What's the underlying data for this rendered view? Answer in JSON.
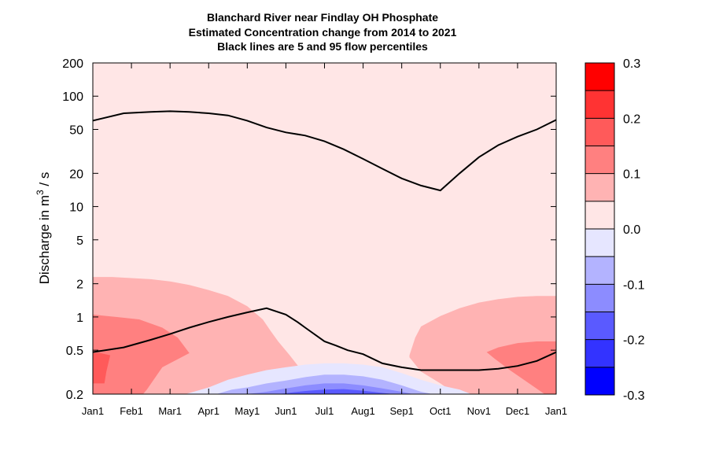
{
  "chart_data": {
    "type": "heatmap",
    "title_lines": [
      "Blanchard River near Findlay OH  Phosphate",
      "Estimated Concentration change from 2014 to 2021",
      "Black lines are 5 and 95 flow percentiles"
    ],
    "ylabel": {
      "prefix": "Discharge in m",
      "superscript": "3",
      "suffix": " / s"
    },
    "y_scale": "log",
    "ylim": [
      0.2,
      200
    ],
    "y_ticks": [
      0.2,
      0.5,
      1,
      2,
      5,
      10,
      20,
      50,
      100,
      200
    ],
    "y_tick_labels": [
      "0.2",
      "0.5",
      "1",
      "2",
      "5",
      "10",
      "20",
      "50",
      "100",
      "200"
    ],
    "xlim": [
      0,
      12
    ],
    "x_tick_labels": [
      "Jan1",
      "Feb1",
      "Mar1",
      "Apr1",
      "May1",
      "Jun1",
      "Jul1",
      "Aug1",
      "Sep1",
      "Oct1",
      "Nov1",
      "Dec1",
      "Jan1"
    ],
    "background_level_color": "#FFE6E6",
    "colorbar": {
      "ticks": [
        0.3,
        0.2,
        0.1,
        0.0,
        -0.1,
        -0.2,
        -0.3
      ],
      "tick_labels": [
        "0.3",
        "0.2",
        "0.1",
        "0.0",
        "-0.1",
        "-0.2",
        "-0.3"
      ],
      "colors_top_to_bottom": [
        "#FF0000",
        "#FF3333",
        "#FF5A5A",
        "#FF8080",
        "#FFB3B3",
        "#FFE6E6",
        "#E6E6FF",
        "#B3B3FF",
        "#8C8CFF",
        "#5A5AFF",
        "#3333FF",
        "#0000FF"
      ]
    },
    "contour_regions": [
      {
        "level": 0.1,
        "color": "#FFB3B3",
        "points": [
          [
            0,
            2.3
          ],
          [
            0.5,
            2.3
          ],
          [
            1.5,
            2.2
          ],
          [
            2,
            2.1
          ],
          [
            2.5,
            1.95
          ],
          [
            3,
            1.75
          ],
          [
            3.5,
            1.55
          ],
          [
            4,
            1.25
          ],
          [
            4.4,
            0.95
          ],
          [
            4.6,
            0.75
          ],
          [
            4.8,
            0.6
          ],
          [
            5.1,
            0.45
          ],
          [
            5.4,
            0.33
          ],
          [
            5.8,
            0.22
          ],
          [
            5.9,
            0.2
          ],
          [
            0,
            0.2
          ]
        ]
      },
      {
        "level": 0.15,
        "color": "#FF8080",
        "points": [
          [
            0,
            1.05
          ],
          [
            0.6,
            1.0
          ],
          [
            1.2,
            0.95
          ],
          [
            1.8,
            0.8
          ],
          [
            2.2,
            0.65
          ],
          [
            2.5,
            0.47
          ],
          [
            1.8,
            0.35
          ],
          [
            1.4,
            0.22
          ],
          [
            1.3,
            0.2
          ],
          [
            0,
            0.2
          ]
        ]
      },
      {
        "level": 0.2,
        "color": "#FF5A5A",
        "points": [
          [
            0,
            0.47
          ],
          [
            0.2,
            0.47
          ],
          [
            0.45,
            0.45
          ],
          [
            0.35,
            0.32
          ],
          [
            0.3,
            0.25
          ],
          [
            0,
            0.25
          ]
        ]
      },
      {
        "level": 0.1,
        "color": "#FFB3B3",
        "points": [
          [
            8.2,
            0.45
          ],
          [
            8.35,
            0.65
          ],
          [
            8.5,
            0.82
          ],
          [
            9.0,
            1.02
          ],
          [
            9.5,
            1.2
          ],
          [
            10,
            1.35
          ],
          [
            10.5,
            1.45
          ],
          [
            11,
            1.52
          ],
          [
            11.5,
            1.55
          ],
          [
            12,
            1.55
          ],
          [
            12,
            0.2
          ],
          [
            9.4,
            0.2
          ],
          [
            9.0,
            0.25
          ],
          [
            8.5,
            0.32
          ],
          [
            8.2,
            0.43
          ]
        ]
      },
      {
        "level": 0.15,
        "color": "#FF8080",
        "points": [
          [
            10.2,
            0.48
          ],
          [
            10.5,
            0.53
          ],
          [
            11,
            0.58
          ],
          [
            11.5,
            0.6
          ],
          [
            12,
            0.6
          ],
          [
            12,
            0.2
          ],
          [
            11.7,
            0.2
          ],
          [
            11.3,
            0.25
          ],
          [
            10.8,
            0.33
          ],
          [
            10.4,
            0.42
          ]
        ]
      },
      {
        "level": -0.05,
        "color": "#E6E6FF",
        "points": [
          [
            2.4,
            0.2
          ],
          [
            3,
            0.23
          ],
          [
            3.5,
            0.27
          ],
          [
            4,
            0.3
          ],
          [
            4.5,
            0.33
          ],
          [
            5,
            0.35
          ],
          [
            5.5,
            0.37
          ],
          [
            6,
            0.38
          ],
          [
            6.5,
            0.38
          ],
          [
            7,
            0.37
          ],
          [
            7.5,
            0.35
          ],
          [
            8,
            0.31
          ],
          [
            8.5,
            0.27
          ],
          [
            9,
            0.24
          ],
          [
            9.5,
            0.22
          ],
          [
            9.8,
            0.2
          ]
        ]
      },
      {
        "level": -0.1,
        "color": "#B3B3FF",
        "points": [
          [
            3.2,
            0.2
          ],
          [
            3.6,
            0.22
          ],
          [
            4,
            0.23
          ],
          [
            4.5,
            0.25
          ],
          [
            5,
            0.265
          ],
          [
            5.5,
            0.285
          ],
          [
            6,
            0.3
          ],
          [
            6.5,
            0.3
          ],
          [
            7,
            0.29
          ],
          [
            7.5,
            0.27
          ],
          [
            8,
            0.24
          ],
          [
            8.5,
            0.21
          ],
          [
            8.8,
            0.2
          ]
        ]
      },
      {
        "level": -0.15,
        "color": "#8C8CFF",
        "points": [
          [
            4.0,
            0.2
          ],
          [
            4.5,
            0.21
          ],
          [
            5,
            0.225
          ],
          [
            5.5,
            0.24
          ],
          [
            6,
            0.25
          ],
          [
            6.5,
            0.25
          ],
          [
            7,
            0.24
          ],
          [
            7.5,
            0.225
          ],
          [
            8,
            0.21
          ],
          [
            8.3,
            0.2
          ]
        ]
      },
      {
        "level": -0.2,
        "color": "#5A5AFF",
        "points": [
          [
            4.8,
            0.2
          ],
          [
            5.2,
            0.208
          ],
          [
            5.6,
            0.215
          ],
          [
            6,
            0.22
          ],
          [
            6.5,
            0.222
          ],
          [
            7,
            0.215
          ],
          [
            7.5,
            0.205
          ],
          [
            7.8,
            0.2
          ]
        ]
      }
    ],
    "percentile_lines": [
      {
        "percentile": 95,
        "x": [
          0,
          0.8,
          1.5,
          2,
          2.5,
          3,
          3.5,
          4,
          4.5,
          5,
          5.5,
          6,
          6.5,
          7,
          7.5,
          8,
          8.5,
          9,
          9.5,
          10,
          10.5,
          11,
          11.5,
          12
        ],
        "y": [
          60,
          70,
          72,
          73,
          72,
          70,
          67,
          60,
          52,
          47,
          44,
          39,
          33,
          27,
          22,
          18,
          15.5,
          14,
          20,
          28,
          36,
          43,
          50,
          61
        ]
      },
      {
        "percentile": 5,
        "x": [
          0,
          0.8,
          1.5,
          2,
          2.5,
          3,
          3.5,
          4,
          4.5,
          5,
          5.3,
          5.5,
          6,
          6.3,
          6.6,
          7,
          7.5,
          8,
          8.5,
          9,
          9.5,
          10,
          10.5,
          11,
          11.5,
          12
        ],
        "y": [
          0.48,
          0.53,
          0.62,
          0.7,
          0.8,
          0.9,
          1.0,
          1.1,
          1.2,
          1.05,
          0.9,
          0.8,
          0.6,
          0.55,
          0.5,
          0.46,
          0.38,
          0.35,
          0.33,
          0.33,
          0.33,
          0.33,
          0.34,
          0.36,
          0.4,
          0.48
        ]
      }
    ]
  }
}
